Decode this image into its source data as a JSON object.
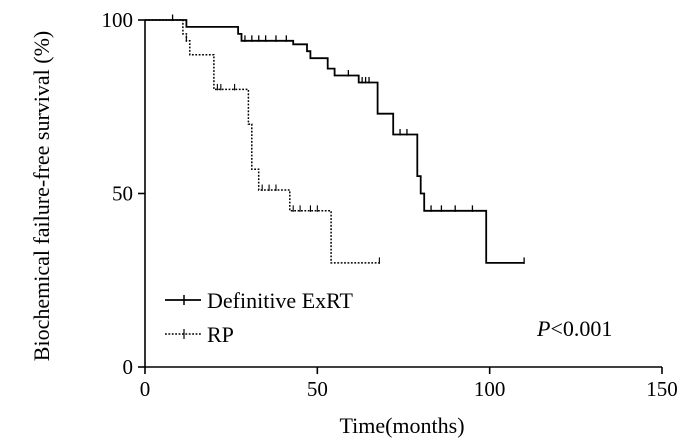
{
  "chart_data": {
    "type": "line",
    "subtype": "kaplan-meier",
    "title": "",
    "xlabel": "Time(months)",
    "ylabel": "Biochemical failure-free survival (%)",
    "xlim": [
      0,
      150
    ],
    "ylim": [
      0,
      100
    ],
    "xticks": [
      0,
      50,
      100,
      150
    ],
    "yticks": [
      0,
      50,
      100
    ],
    "grid": false,
    "legend_position": "bottom-left",
    "annotation": {
      "italic": "P",
      "rest": "<0.001"
    },
    "series": [
      {
        "name": "Definitive ExRT",
        "style": "solid",
        "steps": [
          [
            0,
            100
          ],
          [
            10,
            100
          ],
          [
            12,
            98
          ],
          [
            26,
            98
          ],
          [
            27,
            96
          ],
          [
            28,
            94
          ],
          [
            42,
            94
          ],
          [
            43,
            93
          ],
          [
            46,
            93
          ],
          [
            47,
            91
          ],
          [
            48,
            89
          ],
          [
            52,
            89
          ],
          [
            53,
            86
          ],
          [
            55,
            84
          ],
          [
            61,
            84
          ],
          [
            62,
            82
          ],
          [
            67,
            82
          ],
          [
            67.5,
            73
          ],
          [
            71,
            73
          ],
          [
            72,
            67
          ],
          [
            78,
            67
          ],
          [
            79,
            55
          ],
          [
            80,
            50
          ],
          [
            81,
            45
          ],
          [
            99,
            45
          ],
          [
            99,
            30
          ],
          [
            110,
            30
          ]
        ],
        "censors": [
          [
            8,
            100
          ],
          [
            29,
            94
          ],
          [
            31,
            94
          ],
          [
            33,
            94
          ],
          [
            35,
            94
          ],
          [
            38,
            94
          ],
          [
            41,
            94
          ],
          [
            59,
            84
          ],
          [
            63,
            82
          ],
          [
            64,
            82
          ],
          [
            65,
            82
          ],
          [
            74,
            67
          ],
          [
            76,
            67
          ],
          [
            83,
            45
          ],
          [
            86,
            45
          ],
          [
            90,
            45
          ],
          [
            95,
            45
          ],
          [
            110,
            30
          ]
        ]
      },
      {
        "name": "RP",
        "style": "dotted",
        "steps": [
          [
            0,
            100
          ],
          [
            10,
            100
          ],
          [
            11,
            96
          ],
          [
            12,
            94
          ],
          [
            13,
            90
          ],
          [
            19,
            90
          ],
          [
            20,
            80
          ],
          [
            28,
            80
          ],
          [
            30,
            70
          ],
          [
            31,
            57
          ],
          [
            33,
            51
          ],
          [
            41,
            51
          ],
          [
            42,
            45
          ],
          [
            53,
            45
          ],
          [
            54,
            30
          ],
          [
            68,
            30
          ]
        ],
        "censors": [
          [
            12,
            94
          ],
          [
            21,
            80
          ],
          [
            22,
            80
          ],
          [
            26,
            80
          ],
          [
            34,
            51
          ],
          [
            36,
            51
          ],
          [
            38,
            51
          ],
          [
            43,
            45
          ],
          [
            45,
            45
          ],
          [
            48,
            45
          ],
          [
            50,
            45
          ],
          [
            68,
            30
          ]
        ]
      }
    ]
  }
}
